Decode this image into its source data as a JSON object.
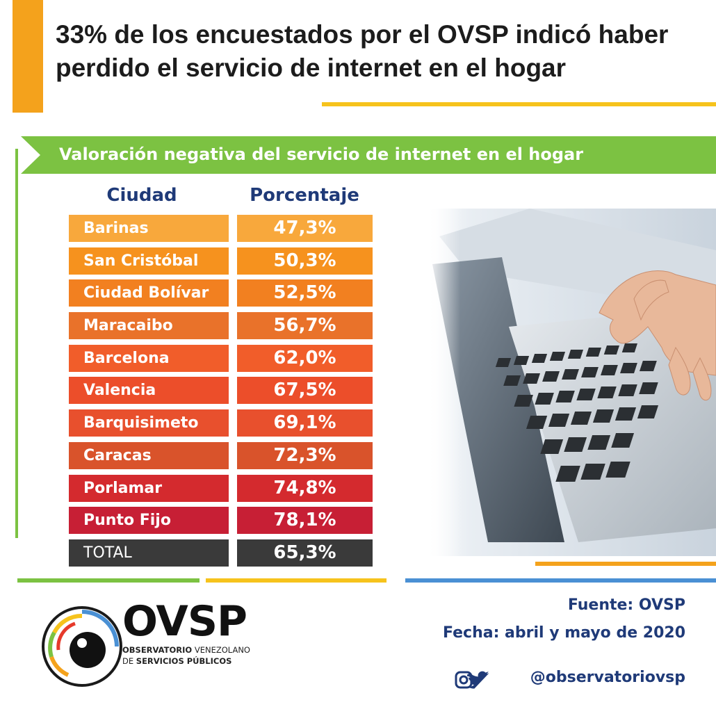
{
  "title": "33% de los encuestados por el OVSP indicó haber perdido el servicio de internet en el hogar",
  "subtitle": "Valoración negativa del servicio de internet en el hogar",
  "colors": {
    "accent_orange": "#f4a21c",
    "accent_yellow": "#f6c31c",
    "accent_green": "#7cc242",
    "accent_blue": "#4a90d4",
    "heading_navy": "#1f3a78",
    "total_gray": "#3a3a3a"
  },
  "chart_data": {
    "type": "table",
    "columns": [
      "Ciudad",
      "Porcentaje"
    ],
    "rows": [
      {
        "city": "Barinas",
        "percent_label": "47,3%",
        "value": 47.3,
        "color": "#f8a83c"
      },
      {
        "city": "San Cristóbal",
        "percent_label": "50,3%",
        "value": 50.3,
        "color": "#f6921e"
      },
      {
        "city": "Ciudad Bolívar",
        "percent_label": "52,5%",
        "value": 52.5,
        "color": "#f28020"
      },
      {
        "city": "Maracaibo",
        "percent_label": "56,7%",
        "value": 56.7,
        "color": "#e9722a"
      },
      {
        "city": "Barcelona",
        "percent_label": "62,0%",
        "value": 62.0,
        "color": "#f15d2a"
      },
      {
        "city": "Valencia",
        "percent_label": "67,5%",
        "value": 67.5,
        "color": "#ec4e2a"
      },
      {
        "city": "Barquisimeto",
        "percent_label": "69,1%",
        "value": 69.1,
        "color": "#e8502d"
      },
      {
        "city": "Caracas",
        "percent_label": "72,3%",
        "value": 72.3,
        "color": "#d9532b"
      },
      {
        "city": "Porlamar",
        "percent_label": "74,8%",
        "value": 74.8,
        "color": "#d42a2e"
      },
      {
        "city": "Punto Fijo",
        "percent_label": "78,1%",
        "value": 78.1,
        "color": "#c71f35"
      }
    ],
    "total": {
      "city": "TOTAL",
      "percent_label": "65,3%",
      "value": 65.3,
      "color": "#3a3a3a"
    }
  },
  "logo": {
    "name": "OVSP",
    "line1_regular": "OBSERVATORIO",
    "line1_rest": " VENEZOLANO",
    "line2_prefix": "DE ",
    "line2_bold": "SERVICIOS PÚBLICOS"
  },
  "footer": {
    "source": "Fuente: OVSP",
    "date": "Fecha: abril y mayo de 2020",
    "social_handle": "@observatoriovsp",
    "social_icons": [
      "instagram-icon",
      "twitter-icon"
    ]
  }
}
